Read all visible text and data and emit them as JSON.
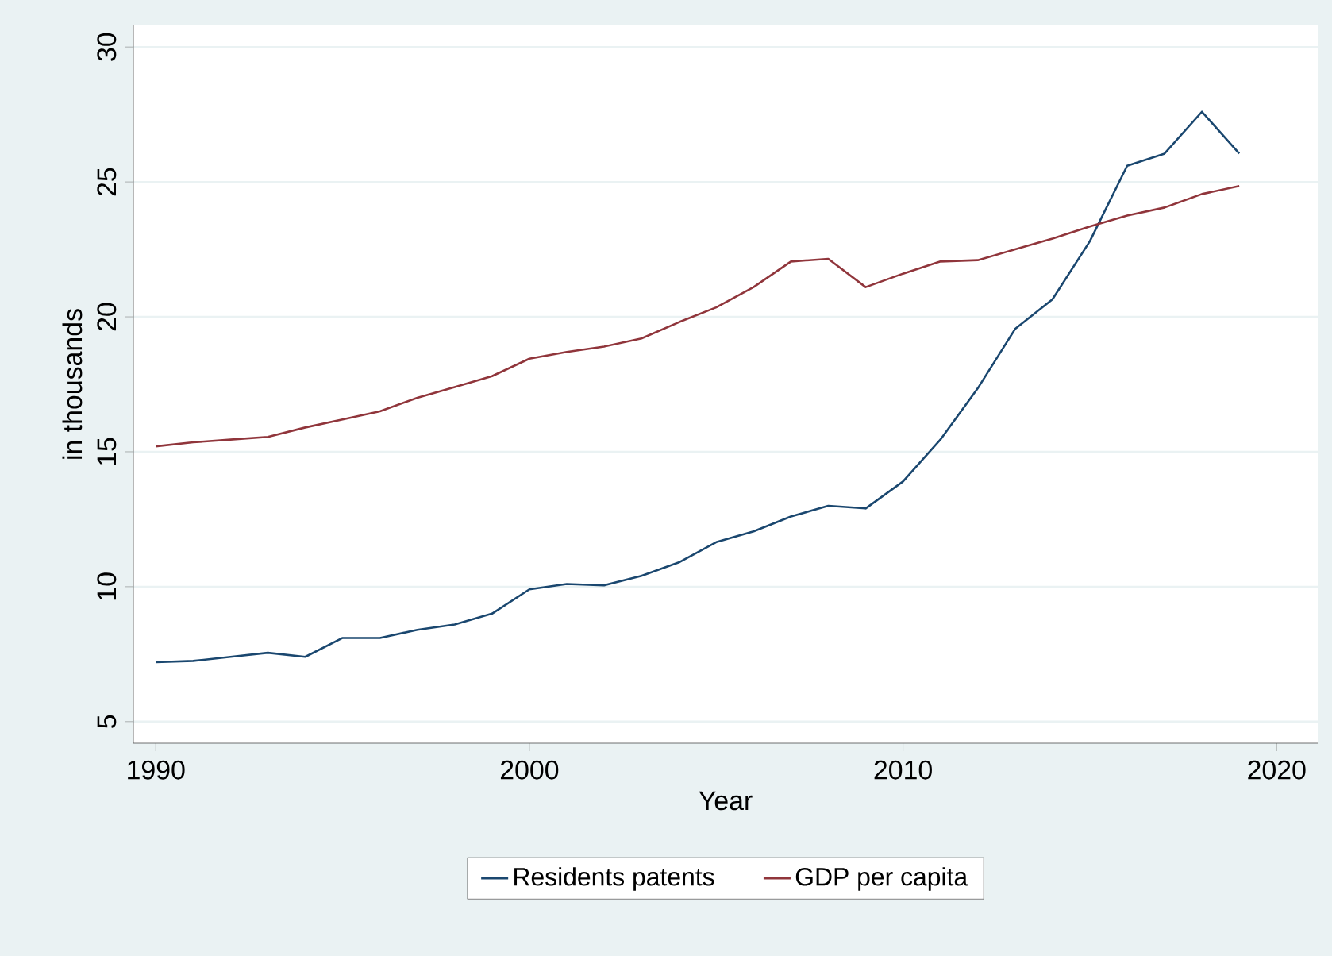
{
  "chart_data": {
    "type": "line",
    "xlabel": "Year",
    "ylabel": "in thousands",
    "x": [
      1990,
      1991,
      1992,
      1993,
      1994,
      1995,
      1996,
      1997,
      1998,
      1999,
      2000,
      2001,
      2002,
      2003,
      2004,
      2005,
      2006,
      2007,
      2008,
      2009,
      2010,
      2011,
      2012,
      2013,
      2014,
      2015,
      2016,
      2017,
      2018,
      2019
    ],
    "series": [
      {
        "name": "Residents patents",
        "color": "#1a476f",
        "values": [
          7.2,
          7.25,
          7.4,
          7.55,
          7.4,
          8.1,
          8.1,
          8.4,
          8.6,
          9.0,
          9.9,
          10.1,
          10.05,
          10.4,
          10.9,
          11.65,
          12.05,
          12.6,
          13.0,
          12.9,
          13.9,
          15.45,
          17.35,
          19.55,
          20.65,
          22.8,
          25.6,
          26.05,
          27.6,
          26.05
        ]
      },
      {
        "name": "GDP per capita",
        "color": "#90353b",
        "values": [
          15.2,
          15.35,
          15.45,
          15.55,
          15.9,
          16.2,
          16.5,
          17.0,
          17.4,
          17.8,
          18.45,
          18.7,
          18.9,
          19.2,
          19.8,
          20.35,
          21.1,
          22.05,
          22.15,
          21.1,
          21.6,
          22.05,
          22.1,
          22.5,
          22.9,
          23.35,
          23.75,
          24.05,
          24.55,
          24.85
        ]
      }
    ],
    "xlim": [
      1989.4,
      2021.1
    ],
    "ylim": [
      4.2,
      30.8
    ],
    "xticks": [
      1990,
      2000,
      2010,
      2020
    ],
    "yticks": [
      5,
      10,
      15,
      20,
      25,
      30
    ],
    "grid": "y",
    "legend": "bottom",
    "marker": "none",
    "line_style": "solid"
  }
}
